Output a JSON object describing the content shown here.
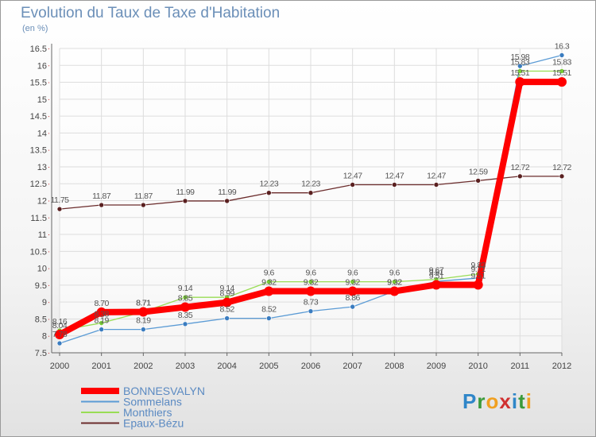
{
  "title": "Evolution du Taux de Taxe d'Habitation",
  "subtitle": "(en %)",
  "logo": {
    "letters": [
      {
        "ch": "P",
        "color": "#2f86c8"
      },
      {
        "ch": "r",
        "color": "#3a9a3a"
      },
      {
        "ch": "o",
        "color": "#f0a020"
      },
      {
        "ch": "x",
        "color": "#d03030"
      },
      {
        "ch": "i",
        "color": "#2f86c8"
      },
      {
        "ch": "t",
        "color": "#3a9a3a"
      },
      {
        "ch": "i",
        "color": "#f0a020"
      }
    ]
  },
  "chart_data": {
    "type": "line",
    "title": "Evolution du Taux de Taxe d'Habitation",
    "ylabel": "(en %)",
    "xlabel": "",
    "categories": [
      "2000",
      "2001",
      "2002",
      "2003",
      "2004",
      "2005",
      "2006",
      "2007",
      "2008",
      "2009",
      "2010",
      "2011",
      "2012"
    ],
    "ylim": [
      7.5,
      16.5
    ],
    "yticks": [
      "7.5",
      "8",
      "8.5",
      "9",
      "9.5",
      "10",
      "10.5",
      "11",
      "11.5",
      "12",
      "12.5",
      "13",
      "13.5",
      "14",
      "14.5",
      "15",
      "15.5",
      "16",
      "16.5"
    ],
    "legend_position": "bottom-left",
    "series": [
      {
        "name": "BONNESVALYN",
        "color": "#ff0000",
        "values": [
          8.04,
          8.7,
          8.71,
          8.85,
          8.99,
          9.32,
          9.32,
          9.32,
          9.32,
          9.51,
          9.51,
          15.51,
          15.51
        ],
        "labels": [
          "8.04",
          "8.70",
          "8.71",
          "8.85",
          "8.99",
          "9.32",
          "9.32",
          "9.32",
          "9.32",
          "9.51",
          "9.51",
          "15.51",
          "15.51"
        ]
      },
      {
        "name": "Sommelans",
        "color": "#5b9bd5",
        "values": [
          7.78,
          8.19,
          8.19,
          8.35,
          8.52,
          8.52,
          8.73,
          8.86,
          9.32,
          9.61,
          9.71,
          15.98,
          16.3
        ],
        "labels": [
          "7.78",
          "8.19",
          "8.19",
          "8.35",
          "8.52",
          "8.52",
          "8.73",
          "8.86",
          "9.32",
          "9.61",
          "9.71",
          "15.98",
          "16.3"
        ]
      },
      {
        "name": "Monthiers",
        "color": "#99dd55",
        "values": [
          8.16,
          8.38,
          8.71,
          9.14,
          9.14,
          9.6,
          9.6,
          9.6,
          9.6,
          9.67,
          9.83,
          15.83,
          15.83
        ],
        "labels": [
          "8.16",
          "8.38",
          "8.71",
          "9.14",
          "9.14",
          "9.6",
          "9.6",
          "9.6",
          "9.6",
          "9.67",
          "9.83",
          "15.83",
          "15.83"
        ]
      },
      {
        "name": "Epaux-Bézu",
        "color": "#6b2c2c",
        "values": [
          11.75,
          11.87,
          11.87,
          11.99,
          11.99,
          12.23,
          12.23,
          12.47,
          12.47,
          12.47,
          12.59,
          12.72,
          12.72
        ],
        "labels": [
          "11.75",
          "11.87",
          "11.87",
          "11.99",
          "11.99",
          "12.23",
          "12.23",
          "12.47",
          "12.47",
          "12.47",
          "12.59",
          "12.72",
          "12.72"
        ]
      }
    ]
  }
}
